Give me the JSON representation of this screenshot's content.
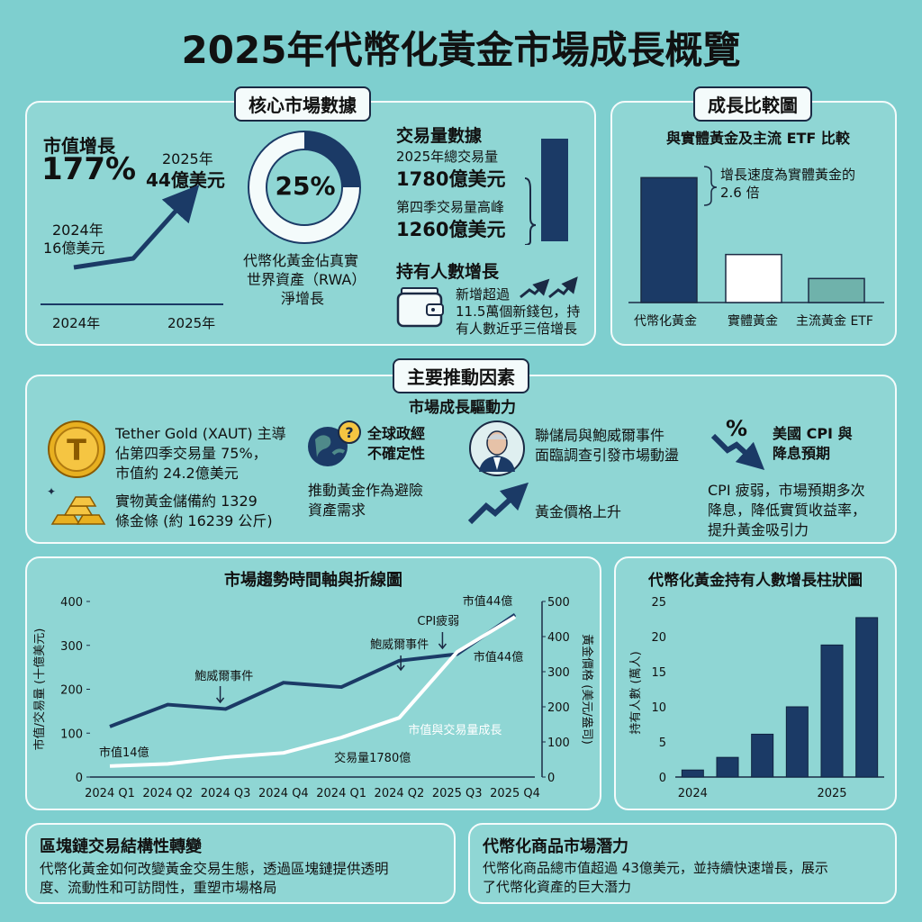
{
  "page_title": "2025年代幣化黃金市場成長概覽",
  "core": {
    "tag": "核心市場數據",
    "mv_title": "市值增長",
    "mv_pct": "177%",
    "mv_2025_year": "2025年",
    "mv_2025_value": "44億美元",
    "mv_2024_year": "2024年",
    "mv_2024_value": "16億美元",
    "axis_2024": "2024年",
    "axis_2025": "2025年",
    "donut_pct": "25%",
    "donut_fraction": 0.25,
    "donut_caption": [
      "代幣化黃金佔真實",
      "世界資產（RWA）",
      "淨增長"
    ],
    "vol_title": "交易量數據",
    "vol_line1": "2025年總交易量",
    "vol_value1": "1780億美元",
    "vol_line2": "第四季交易量高峰",
    "vol_value2": "1260億美元",
    "holder_title": "持有人數增長",
    "holder_text": [
      "新增超過",
      "11.5萬個新錢包，持",
      "有人數近乎三倍增長"
    ]
  },
  "growth": {
    "tag": "成長比較圖",
    "subtitle": "與實體黃金及主流 ETF 比較",
    "note_line1": "增長速度為實體黃金的",
    "note_line2": "2.6 倍"
  },
  "drivers": {
    "tag": "主要推動因素",
    "subtitle": "市場成長驅動力",
    "xaut": [
      "Tether Gold (XAUT) 主導",
      "佔第四季交易量 75%，",
      "市值約 24.2億美元"
    ],
    "bars": [
      "實物黃金儲備約 1329",
      "條金條 (約 16239 公斤)"
    ],
    "uncertainty_title": [
      "全球政經",
      "不確定性"
    ],
    "uncertainty_text": [
      "推動黃金作為避險",
      "資產需求"
    ],
    "fed_text": [
      "聯儲局與鮑威爾事件",
      "面臨調查引發市場動盪"
    ],
    "gold_price": "黃金價格上升",
    "cpi_icon": "%",
    "cpi_title": [
      "美國 CPI 與",
      "降息預期"
    ],
    "cpi_text": [
      "CPI 疲弱，市場預期多次",
      "降息，降低實質收益率，",
      "提升黃金吸引力"
    ]
  },
  "footer": {
    "left_title": "區塊鏈交易結構性轉變",
    "left_text": [
      "代幣化黃金如何改變黃金交易生態，透過區塊鏈提供透明",
      "度、流動性和可訪問性，重塑市場格局"
    ],
    "right_title": "代幣化商品市場潛力",
    "right_text": [
      "代幣化商品總市值超過 43億美元，並持續快速增長，展示",
      "了代幣化資產的巨大潛力"
    ]
  },
  "chart_data": [
    {
      "type": "line",
      "title": "",
      "x": [
        2024,
        2025
      ],
      "series": [
        {
          "values": [
            16,
            44
          ]
        }
      ],
      "x_labels": [
        "2024年",
        "2025年"
      ],
      "annotations": [
        "2024年 16億美元",
        "2025年 44億美元"
      ]
    },
    {
      "type": "bar",
      "title": "與實體黃金及主流 ETF 比較",
      "categories": [
        "代幣化黃金",
        "實體黃金",
        "主流黃金 ETF"
      ],
      "values": [
        2.6,
        1.0,
        0.5
      ],
      "colors": [
        "#1b3a66",
        "#ffffff",
        "#6fb2ab"
      ],
      "ylim": [
        0,
        3
      ],
      "annotation": "增長速度為實體黃金的 2.6 倍"
    },
    {
      "type": "line",
      "title": "市場趨勢時間軸與折線圖",
      "categories": [
        "2024 Q1",
        "2024 Q2",
        "2024 Q3",
        "2024 Q4",
        "2024 Q1",
        "2024 Q2",
        "2025 Q3",
        "2025 Q4"
      ],
      "left_ylabel": "市值/交易量 (十億美元)",
      "right_ylabel": "黃金價格 (美元/盎司)",
      "left_ylim": [
        0,
        400
      ],
      "right_ylim": [
        0,
        500
      ],
      "left_ticks": [
        0,
        100,
        200,
        300,
        400
      ],
      "right_ticks": [
        0,
        100,
        200,
        300,
        400,
        500
      ],
      "series": [
        {
          "values": [
            115,
            165,
            155,
            215,
            205,
            265,
            280,
            370
          ],
          "color": "#1b3a66"
        },
        {
          "values": [
            25,
            30,
            45,
            55,
            90,
            135,
            285,
            365
          ],
          "color": "#ffffff"
        }
      ],
      "annotations": [
        "市值44億",
        "CPI疲弱",
        "鮑威爾事件",
        "鮑威爾事件",
        "市值44億",
        "市值與交易量成長",
        "市值14億",
        "交易量1780億"
      ]
    },
    {
      "type": "bar",
      "title": "代幣化黃金持有人數增長柱狀圖",
      "ylabel": "持有人數 (萬人)",
      "x": [
        1,
        2,
        3,
        4,
        5,
        6
      ],
      "x_tick_labels": [
        "2024",
        "2025"
      ],
      "values": [
        1,
        2.8,
        6.1,
        10,
        18.8,
        22.7
      ],
      "ylim": [
        0,
        25
      ],
      "yticks": [
        0,
        5,
        10,
        15,
        20,
        25
      ]
    }
  ],
  "colors": {
    "background": "#7ecfcf",
    "navy": "#1b3a66",
    "panel_border": "#f4fbfb"
  }
}
